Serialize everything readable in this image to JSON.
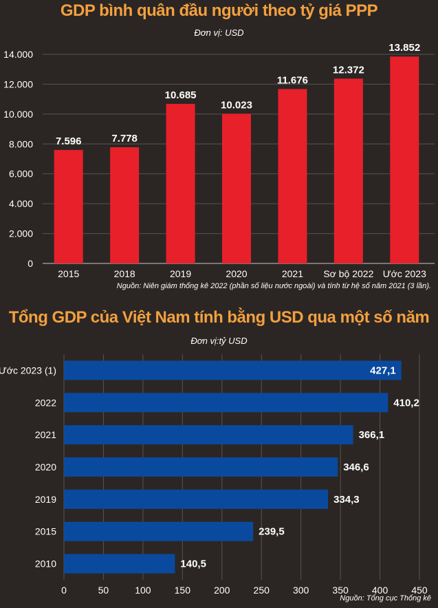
{
  "charts": [
    {
      "title": "GDP bình quân đầu người theo tỷ giá PPP",
      "unit": "Đơn vị: USD",
      "source": "Nguồn: Niên giám thống kê 2022 (phần số liệu nước ngoài) và tính từ hệ số năm 2021 (3 lần).",
      "bar_color": "#e8202a"
    },
    {
      "title": "Tổng GDP của Việt Nam tính bằng USD qua một số năm",
      "unit": "Đơn vị:tỷ USD",
      "source": "Nguồn: Tổng cục Thống kê",
      "bar_color": "#0a4a9e"
    }
  ],
  "chart_data": [
    {
      "type": "bar",
      "orientation": "vertical",
      "title": "GDP bình quân đầu người theo tỷ giá PPP",
      "categories": [
        "2015",
        "2018",
        "2019",
        "2020",
        "2021",
        "Sơ bộ 2022",
        "Ước 2023"
      ],
      "values": [
        7596,
        7778,
        10685,
        10023,
        11676,
        12372,
        13852
      ],
      "value_labels": [
        "7.596",
        "7.778",
        "10.685",
        "10.023",
        "11.676",
        "12.372",
        "13.852"
      ],
      "yticks": [
        0,
        2000,
        4000,
        6000,
        8000,
        10000,
        12000,
        14000
      ],
      "ytick_labels": [
        "0",
        "2.000",
        "4.000",
        "6.000",
        "8.000",
        "10.000",
        "12.000",
        "14.000"
      ],
      "ylim": [
        0,
        14000
      ],
      "grid": true
    },
    {
      "type": "bar",
      "orientation": "horizontal",
      "title": "Tổng GDP của Việt Nam tính bằng USD qua một số năm",
      "categories": [
        "Ước 2023 (1)",
        "2022",
        "2021",
        "2020",
        "2019",
        "2015",
        "2010"
      ],
      "values": [
        427.1,
        410.2,
        366.1,
        346.6,
        334.3,
        239.5,
        140.5
      ],
      "value_labels": [
        "427,1",
        "410,2",
        "366,1",
        "346,6",
        "334,3",
        "239,5",
        "140,5"
      ],
      "xticks": [
        0,
        50,
        100,
        150,
        200,
        250,
        300,
        350,
        400,
        450
      ],
      "xtick_labels": [
        "0",
        "50",
        "100",
        "150",
        "200",
        "250",
        "300",
        "350",
        "400",
        "450"
      ],
      "xlim": [
        0,
        450
      ],
      "grid": true
    }
  ]
}
